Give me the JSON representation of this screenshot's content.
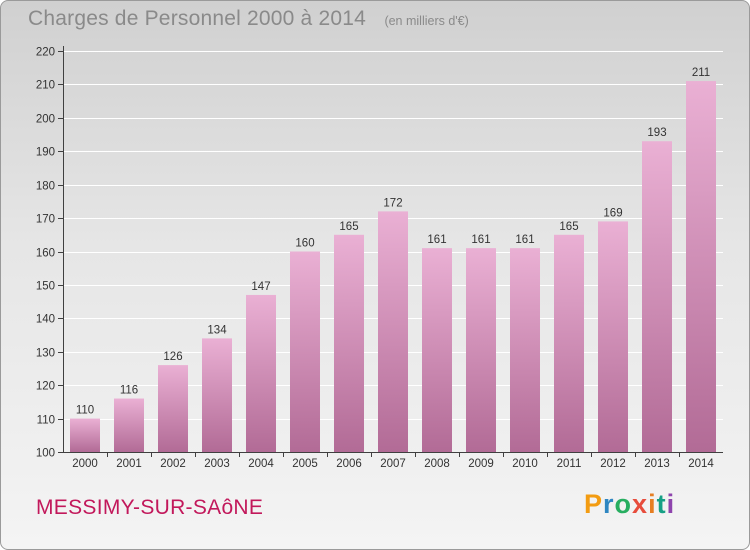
{
  "header": {
    "title": "Charges de Personnel 2000 à 2014",
    "unit": "(en milliers d'€)"
  },
  "footer": {
    "city": "MESSIMY-SUR-SAôNE",
    "brand_letters": [
      "P",
      "r",
      "o",
      "x",
      "i",
      "t",
      "i"
    ],
    "brand_colors": [
      "#f39c12",
      "#2e86c1",
      "#27ae60",
      "#e74c3c",
      "#e67e22",
      "#16a085",
      "#8e44ad"
    ]
  },
  "colors": {
    "bar_light": "#eab0d4",
    "bar_dark": "#b26b96",
    "city": "#c2185b"
  },
  "chart_data": {
    "type": "bar",
    "categories": [
      "2000",
      "2001",
      "2002",
      "2003",
      "2004",
      "2005",
      "2006",
      "2007",
      "2008",
      "2009",
      "2010",
      "2011",
      "2012",
      "2013",
      "2014"
    ],
    "values": [
      110,
      116,
      126,
      134,
      147,
      160,
      165,
      172,
      161,
      161,
      161,
      165,
      169,
      193,
      211
    ],
    "ylim": [
      100,
      220
    ],
    "yticks": [
      100,
      110,
      120,
      130,
      140,
      150,
      160,
      170,
      180,
      190,
      200,
      210,
      220
    ],
    "grid": true,
    "data_labels": true
  }
}
